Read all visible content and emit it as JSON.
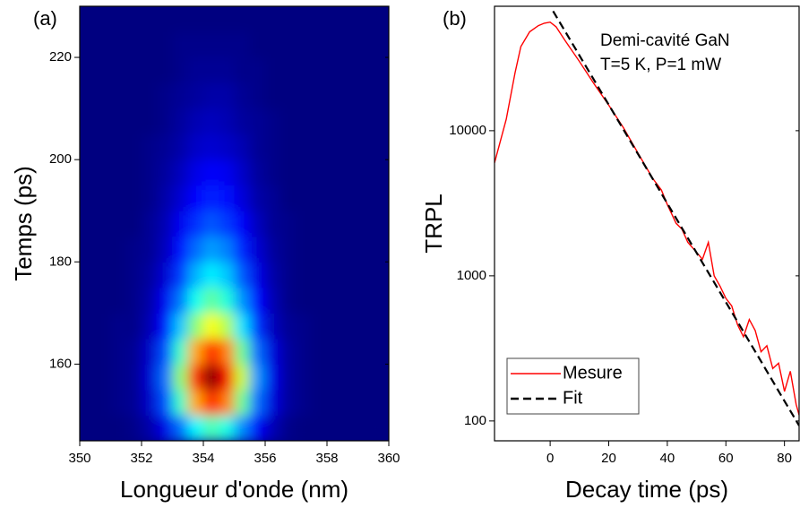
{
  "chart_data": [
    {
      "type": "heatmap",
      "panel_label": "(a)",
      "xlabel": "Longueur d'onde (nm)",
      "ylabel": "Temps (ps)",
      "colormap": "jet",
      "xlim": [
        350,
        360
      ],
      "xticks": [
        350,
        352,
        354,
        356,
        358,
        360
      ],
      "ylim": [
        145,
        230
      ],
      "yticks": [
        160,
        180,
        200,
        220
      ],
      "x": [
        350.25,
        350.75,
        351.25,
        351.75,
        352.25,
        352.75,
        353.25,
        353.75,
        354.25,
        354.75,
        355.25,
        355.75,
        356.25,
        356.75,
        357.25,
        357.75,
        358.25,
        358.75,
        359.25,
        359.75
      ],
      "y": [
        147.5,
        152.5,
        157.5,
        162.5,
        167.5,
        172.5,
        177.5,
        182.5,
        187.5,
        192.5,
        197.5,
        202.5,
        207.5,
        212.5,
        217.5,
        222.5,
        227.5
      ],
      "z": [
        [
          0,
          0,
          0,
          1,
          4,
          10,
          23,
          37,
          45,
          40,
          26,
          12,
          5,
          1,
          0,
          0,
          0,
          0,
          0,
          0
        ],
        [
          0,
          0,
          1,
          2,
          7,
          20,
          43,
          71,
          85,
          75,
          48,
          23,
          9,
          3,
          1,
          0,
          0,
          0,
          0,
          0
        ],
        [
          0,
          0,
          1,
          2,
          8,
          23,
          51,
          83,
          100,
          88,
          57,
          27,
          10,
          3,
          1,
          0,
          0,
          0,
          0,
          0
        ],
        [
          0,
          0,
          1,
          2,
          7,
          20,
          43,
          71,
          85,
          75,
          48,
          23,
          9,
          3,
          1,
          0,
          0,
          0,
          0,
          0
        ],
        [
          0,
          0,
          1,
          1,
          5,
          14,
          32,
          51,
          62,
          55,
          35,
          17,
          6,
          2,
          1,
          0,
          0,
          0,
          0,
          0
        ],
        [
          0,
          0,
          0,
          1,
          4,
          11,
          24,
          39,
          47,
          41,
          27,
          13,
          5,
          1,
          0,
          0,
          0,
          0,
          0,
          0
        ],
        [
          0,
          0,
          0,
          1,
          3,
          8,
          18,
          30,
          36,
          32,
          21,
          10,
          4,
          1,
          0,
          0,
          0,
          0,
          0,
          0
        ],
        [
          0,
          0,
          0,
          1,
          2,
          6,
          14,
          23,
          28,
          25,
          16,
          8,
          3,
          1,
          0,
          0,
          0,
          0,
          0,
          0
        ],
        [
          0,
          0,
          0,
          0,
          2,
          5,
          11,
          17,
          21,
          18,
          12,
          6,
          2,
          1,
          0,
          0,
          0,
          0,
          0,
          0
        ],
        [
          0,
          0,
          0,
          0,
          1,
          4,
          8,
          13,
          16,
          14,
          9,
          4,
          2,
          0,
          0,
          0,
          0,
          0,
          0,
          0
        ],
        [
          0,
          0,
          0,
          0,
          1,
          3,
          6,
          10,
          12,
          11,
          7,
          3,
          1,
          0,
          0,
          0,
          0,
          0,
          0,
          0
        ],
        [
          0,
          0,
          0,
          0,
          1,
          2,
          4,
          7,
          8,
          7,
          5,
          2,
          1,
          0,
          0,
          0,
          0,
          0,
          0,
          0
        ],
        [
          0,
          0,
          0,
          0,
          0,
          1,
          3,
          5,
          6,
          5,
          3,
          2,
          1,
          0,
          0,
          0,
          0,
          0,
          0,
          0
        ],
        [
          0,
          0,
          0,
          0,
          0,
          1,
          2,
          3,
          4,
          4,
          2,
          1,
          0,
          0,
          0,
          0,
          0,
          0,
          0,
          0
        ],
        [
          0,
          0,
          0,
          0,
          0,
          0,
          1,
          2,
          2,
          2,
          1,
          1,
          0,
          0,
          0,
          0,
          0,
          0,
          0,
          0
        ],
        [
          0,
          0,
          0,
          0,
          0,
          0,
          1,
          1,
          1,
          1,
          1,
          0,
          0,
          0,
          0,
          0,
          0,
          0,
          0,
          0
        ],
        [
          0,
          0,
          0,
          0,
          0,
          0,
          0,
          0,
          0,
          0,
          0,
          0,
          0,
          0,
          0,
          0,
          0,
          0,
          0,
          0
        ]
      ]
    },
    {
      "type": "line",
      "panel_label": "(b)",
      "xlabel": "Decay time (ps)",
      "ylabel": "TRPL",
      "annotations": [
        "Demi-cavité GaN",
        "T=5 K, P=1 mW"
      ],
      "xlim": [
        -19,
        85
      ],
      "xticks": [
        0,
        20,
        40,
        60,
        80
      ],
      "ylim": [
        73,
        72000
      ],
      "yticks": [
        100,
        1000,
        10000
      ],
      "log_y": true,
      "legend": "lower left",
      "series": [
        {
          "name": "Mesure",
          "color": "#ff0000",
          "dash": false,
          "x": [
            -19,
            -15,
            -12,
            -10,
            -7,
            -4,
            -2,
            0,
            2,
            5,
            10,
            15,
            20,
            25,
            30,
            35,
            38,
            40,
            43,
            45,
            47,
            50,
            52,
            54,
            56,
            58,
            60,
            62,
            64,
            66,
            68,
            70,
            72,
            74,
            76,
            78,
            80,
            82,
            84,
            85
          ],
          "values": [
            6000,
            12000,
            25000,
            38000,
            48000,
            53000,
            55000,
            56000,
            52000,
            42000,
            30000,
            21000,
            15000,
            10500,
            7000,
            4700,
            3900,
            3100,
            2300,
            2100,
            1700,
            1450,
            1300,
            1700,
            1000,
            850,
            700,
            620,
            460,
            380,
            500,
            420,
            300,
            330,
            230,
            250,
            160,
            220,
            130,
            110
          ]
        },
        {
          "name": "Fit",
          "color": "#000000",
          "dash": true,
          "x": [
            1,
            10,
            20,
            30,
            40,
            50,
            60,
            70,
            80,
            85
          ],
          "values": [
            66700,
            33000,
            15100,
            6900,
            3150,
            1440,
            658,
            301,
            137,
            93
          ]
        }
      ]
    }
  ]
}
